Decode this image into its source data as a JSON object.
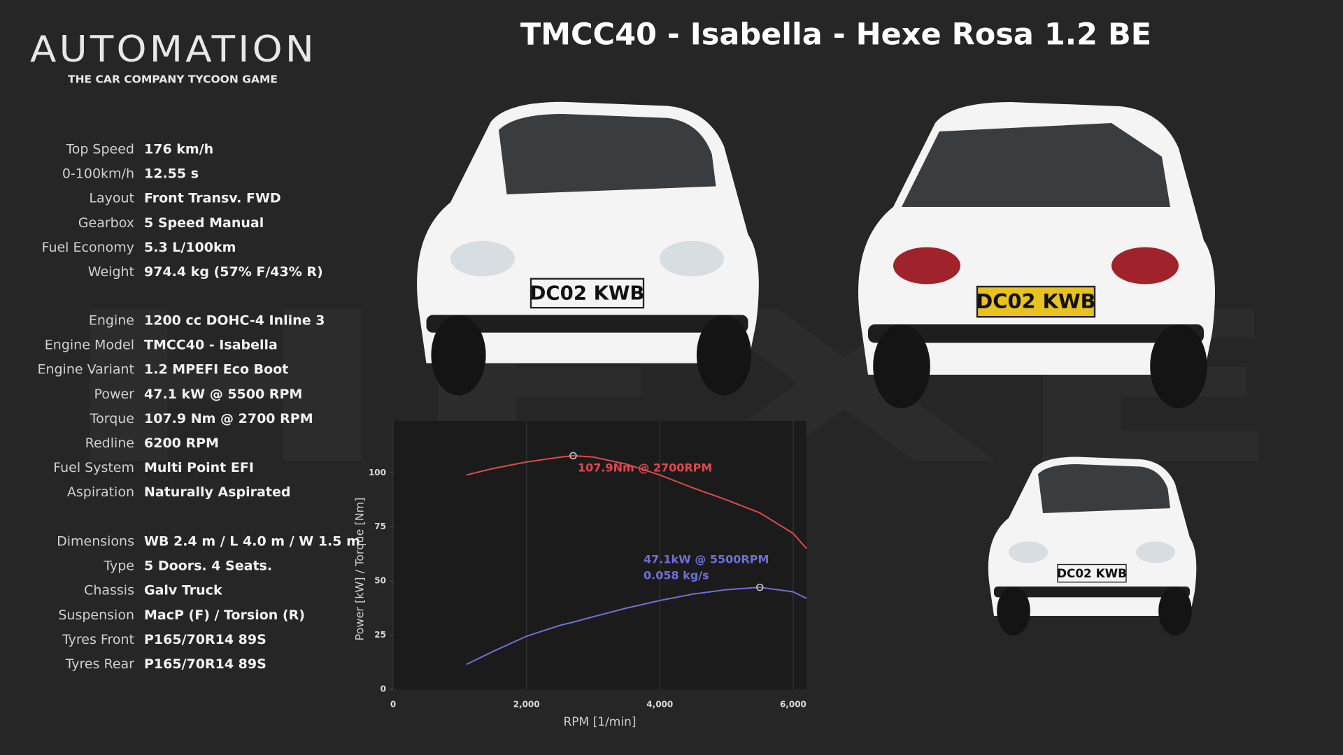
{
  "logo": {
    "title": "AUTOMATION",
    "subtitle": "THE CAR COMPANY TYCOON GAME"
  },
  "header": {
    "title": "TMCC40 - Isabella - Hexe Rosa 1.2 BE"
  },
  "watermark": "HEXE",
  "plate": "DC02 KWB",
  "specs": [
    [
      {
        "label": "Top Speed",
        "value": "176 km/h"
      },
      {
        "label": "0-100km/h",
        "value": "12.55 s"
      },
      {
        "label": "Layout",
        "value": "Front Transv. FWD"
      },
      {
        "label": "Gearbox",
        "value": "5 Speed Manual"
      },
      {
        "label": "Fuel Economy",
        "value": "5.3 L/100km"
      },
      {
        "label": "Weight",
        "value": "974.4 kg (57% F/43% R)"
      }
    ],
    [
      {
        "label": "Engine",
        "value": "1200 cc DOHC-4 Inline 3"
      },
      {
        "label": "Engine Model",
        "value": "TMCC40 - Isabella"
      },
      {
        "label": "Engine Variant",
        "value": "1.2 MPEFI Eco Boot"
      },
      {
        "label": "Power",
        "value": "47.1 kW @ 5500 RPM"
      },
      {
        "label": "Torque",
        "value": "107.9 Nm @ 2700 RPM"
      },
      {
        "label": "Redline",
        "value": "6200 RPM"
      },
      {
        "label": "Fuel System",
        "value": "Multi Point EFI"
      },
      {
        "label": "Aspiration",
        "value": "Naturally Aspirated"
      }
    ],
    [
      {
        "label": "Dimensions",
        "value": "WB 2.4 m / L 4.0 m / W 1.5 m"
      },
      {
        "label": "Type",
        "value": "5 Doors. 4 Seats."
      },
      {
        "label": "Chassis",
        "value": "Galv Truck"
      },
      {
        "label": "Suspension",
        "value": "MacP (F) / Torsion (R)"
      },
      {
        "label": "Tyres Front",
        "value": "P165/70R14 89S"
      },
      {
        "label": "Tyres Rear",
        "value": "P165/70R14  89S"
      }
    ]
  ],
  "chart_data": {
    "type": "line",
    "x_label": "RPM [1/min]",
    "y_label": "Power [kW] / Torque [Nm]",
    "x": [
      1100,
      1500,
      2000,
      2500,
      2700,
      3000,
      3500,
      4000,
      4500,
      5000,
      5500,
      6000,
      6200
    ],
    "series": [
      {
        "color": "#e0484e",
        "values": [
          99,
          102,
          105,
          107.2,
          107.9,
          107.3,
          104,
          99,
          93,
          87.5,
          81.5,
          72,
          65
        ]
      },
      {
        "color": "#6f6fd6",
        "values": [
          11.5,
          17.5,
          24.5,
          29.5,
          31,
          33.5,
          37.5,
          41,
          44,
          46,
          47.1,
          45,
          42
        ]
      }
    ],
    "annotations": [
      "107.9Nm @ 2700RPM",
      "47.1kW @ 5500RPM",
      "0.058 kg/s"
    ],
    "xlim": [
      0,
      6200
    ],
    "ylim": [
      0,
      124
    ],
    "xticks": [
      0,
      {
        "value": 2000,
        "label": "2,000"
      },
      {
        "value": 4000,
        "label": "4,000"
      },
      {
        "value": 6000,
        "label": "6,000"
      }
    ],
    "yticks": [
      0,
      25,
      50,
      75,
      100
    ],
    "grid": true
  }
}
